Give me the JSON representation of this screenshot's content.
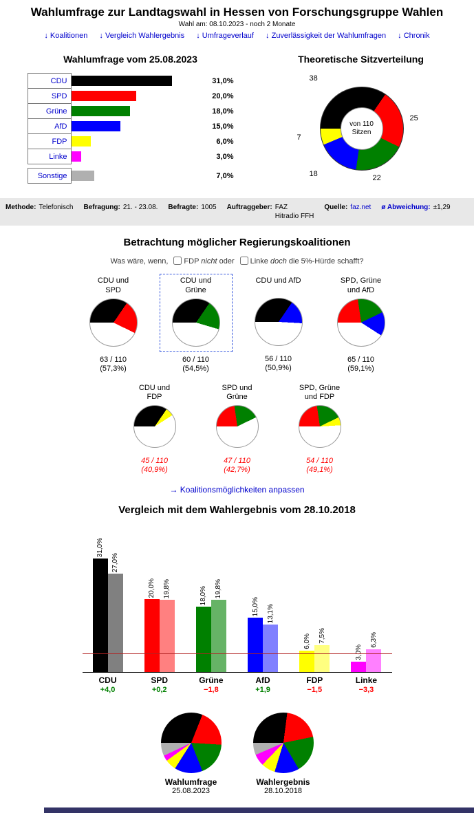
{
  "header": {
    "title": "Wahlumfrage zur Landtagswahl in Hessen von Forschungsgruppe Wahlen",
    "election_label": "Wahl am:",
    "election_info": "08.10.2023 - noch 2 Monate"
  },
  "nav": {
    "arrow": "↓",
    "items": [
      "Koalitionen",
      "Vergleich Wahlergebnis",
      "Umfrageverlauf",
      "Zuverlässigkeit der Wahlumfragen",
      "Chronik"
    ]
  },
  "meta": {
    "methode_label": "Methode:",
    "methode": "Telefonisch",
    "befragung_label": "Befragung:",
    "befragung": "21. - 23.08.",
    "befragte_label": "Befragte:",
    "befragte": "1005",
    "auftraggeber_label": "Auftraggeber:",
    "auftraggeber": "FAZ\nHitradio FFH",
    "quelle_label": "Quelle:",
    "quelle": "faz.net",
    "abweichung_label": "ø Abweichung:",
    "abweichung": "±1,29"
  },
  "coalition_question": {
    "prefix": "Was wäre, wenn,",
    "fdp": "FDP",
    "fdp_mod": "nicht",
    "conj": "oder",
    "linke": "Linke",
    "linke_mod": "doch",
    "suffix": "die 5%-Hürde schafft?"
  },
  "coalition_link": {
    "arrow": "→",
    "label": "Koalitionsmöglichkeiten anpassen"
  },
  "chart_data": [
    {
      "id": "umfrage_balken",
      "type": "bar",
      "orientation": "horizontal",
      "title": "Wahlumfrage vom 25.08.2023",
      "categories": [
        "CDU",
        "SPD",
        "Grüne",
        "AfD",
        "FDP",
        "Linke",
        "Sonstige"
      ],
      "values": [
        31.0,
        20.0,
        18.0,
        15.0,
        6.0,
        3.0,
        7.0
      ],
      "value_labels": [
        "31,0%",
        "20,0%",
        "18,0%",
        "15,0%",
        "6,0%",
        "3,0%",
        "7,0%"
      ],
      "colors": [
        "#000000",
        "#ff0000",
        "#008000",
        "#0000ff",
        "#ffff00",
        "#ff00ff",
        "#b0b0b0"
      ],
      "xlim": [
        0,
        35
      ]
    },
    {
      "id": "sitzverteilung",
      "type": "pie",
      "subtype": "donut",
      "title": "Theoretische Sitzverteilung",
      "center_label": "von 110\nSitzen",
      "total": 110,
      "categories": [
        "CDU",
        "SPD",
        "Grüne",
        "AfD",
        "FDP"
      ],
      "values": [
        38,
        25,
        22,
        18,
        7
      ],
      "colors": [
        "#000000",
        "#ff0000",
        "#008000",
        "#0000ff",
        "#ffff00"
      ]
    },
    {
      "id": "koalitionen",
      "type": "pie",
      "title": "Betrachtung möglicher Regierungskoalitionen",
      "total": 110,
      "pies": [
        {
          "name": "CDU und\nSPD",
          "parties": [
            "CDU",
            "SPD"
          ],
          "seats": [
            38,
            25
          ],
          "colors": [
            "#000000",
            "#ff0000"
          ],
          "seats_label": "63 / 110",
          "pct_label": "(57,3%)",
          "majority": true,
          "selected": false
        },
        {
          "name": "CDU und\nGrüne",
          "parties": [
            "CDU",
            "Grüne"
          ],
          "seats": [
            38,
            22
          ],
          "colors": [
            "#000000",
            "#008000"
          ],
          "seats_label": "60 / 110",
          "pct_label": "(54,5%)",
          "majority": true,
          "selected": true
        },
        {
          "name": "CDU und AfD",
          "parties": [
            "CDU",
            "AfD"
          ],
          "seats": [
            38,
            18
          ],
          "colors": [
            "#000000",
            "#0000ff"
          ],
          "seats_label": "56 / 110",
          "pct_label": "(50,9%)",
          "majority": true,
          "selected": false
        },
        {
          "name": "SPD, Grüne\nund AfD",
          "parties": [
            "SPD",
            "Grüne",
            "AfD"
          ],
          "seats": [
            25,
            22,
            18
          ],
          "colors": [
            "#ff0000",
            "#008000",
            "#0000ff"
          ],
          "seats_label": "65 / 110",
          "pct_label": "(59,1%)",
          "majority": true,
          "selected": false
        },
        {
          "name": "CDU und\nFDP",
          "parties": [
            "CDU",
            "FDP"
          ],
          "seats": [
            38,
            7
          ],
          "colors": [
            "#000000",
            "#ffff00"
          ],
          "seats_label": "45 / 110",
          "pct_label": "(40,9%)",
          "majority": false,
          "selected": false
        },
        {
          "name": "SPD und\nGrüne",
          "parties": [
            "SPD",
            "Grüne"
          ],
          "seats": [
            25,
            22
          ],
          "colors": [
            "#ff0000",
            "#008000"
          ],
          "seats_label": "47 / 110",
          "pct_label": "(42,7%)",
          "majority": false,
          "selected": false
        },
        {
          "name": "SPD, Grüne\nund FDP",
          "parties": [
            "SPD",
            "Grüne",
            "FDP"
          ],
          "seats": [
            25,
            22,
            7
          ],
          "colors": [
            "#ff0000",
            "#008000",
            "#ffff00"
          ],
          "seats_label": "54 / 110",
          "pct_label": "(49,1%)",
          "majority": false,
          "selected": false
        }
      ]
    },
    {
      "id": "vergleich",
      "type": "bar",
      "title": "Vergleich mit dem Wahlergebnis vom 28.10.2018",
      "categories": [
        "CDU",
        "SPD",
        "Grüne",
        "AfD",
        "FDP",
        "Linke"
      ],
      "series": [
        {
          "name": "Wahlumfrage 25.08.2023",
          "values": [
            31.0,
            20.0,
            18.0,
            15.0,
            6.0,
            3.0
          ],
          "labels": [
            "31,0%",
            "20,0%",
            "18,0%",
            "15,0%",
            "6,0%",
            "3,0%"
          ],
          "colors": [
            "#000000",
            "#ff0000",
            "#008000",
            "#0000ff",
            "#ffff00",
            "#ff00ff"
          ]
        },
        {
          "name": "Wahlergebnis 28.10.2018",
          "values": [
            27.0,
            19.8,
            19.8,
            13.1,
            7.5,
            6.3
          ],
          "labels": [
            "27,0%",
            "19,8%",
            "19,8%",
            "13,1%",
            "7,5%",
            "6,3%"
          ],
          "colors": [
            "#808080",
            "#ff8080",
            "#66b366",
            "#8080ff",
            "#ffff80",
            "#ff80ff"
          ]
        }
      ],
      "diffs": [
        "+4,0",
        "+0,2",
        "−1,8",
        "+1,9",
        "−1,5",
        "−3,3"
      ],
      "diff_positive": [
        true,
        true,
        false,
        true,
        false,
        false
      ],
      "threshold_pct": 5,
      "ylim": [
        0,
        33
      ]
    },
    {
      "id": "ergebnis_kreise",
      "type": "pie",
      "pies": [
        {
          "label": "Wahlumfrage",
          "date": "25.08.2023",
          "categories": [
            "CDU",
            "SPD",
            "Grüne",
            "AfD",
            "FDP",
            "Linke",
            "Sonstige"
          ],
          "values": [
            31.0,
            20.0,
            18.0,
            15.0,
            6.0,
            3.0,
            7.0
          ],
          "colors": [
            "#000000",
            "#ff0000",
            "#008000",
            "#0000ff",
            "#ffff00",
            "#ff00ff",
            "#b0b0b0"
          ]
        },
        {
          "label": "Wahlergebnis",
          "date": "28.10.2018",
          "categories": [
            "CDU",
            "SPD",
            "Grüne",
            "AfD",
            "FDP",
            "Linke",
            "Sonstige"
          ],
          "values": [
            27.0,
            19.8,
            19.8,
            13.1,
            7.5,
            6.3,
            6.5
          ],
          "colors": [
            "#000000",
            "#ff0000",
            "#008000",
            "#0000ff",
            "#ffff00",
            "#ff00ff",
            "#b0b0b0"
          ]
        }
      ]
    }
  ]
}
